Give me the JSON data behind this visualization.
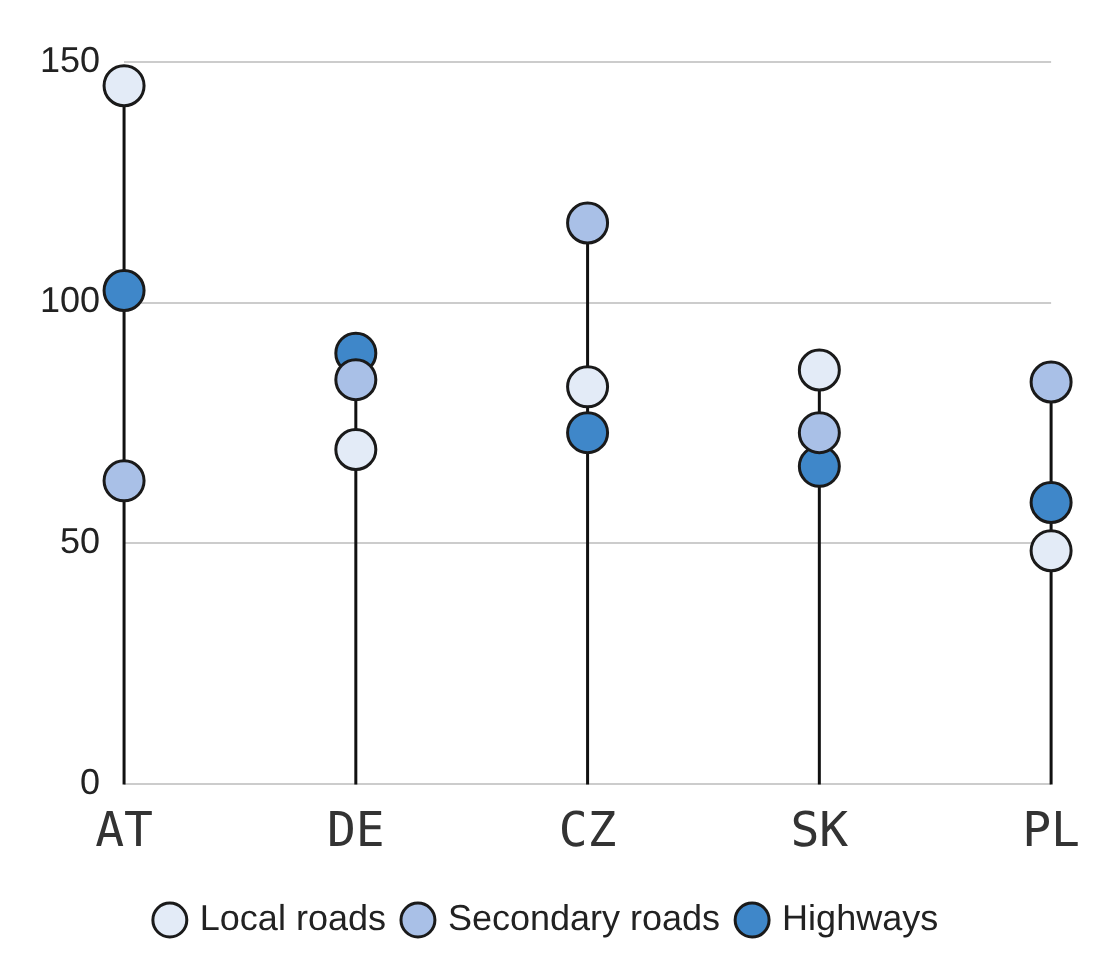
{
  "chart_data": {
    "type": "lollipop",
    "categories": [
      "AT",
      "DE",
      "CZ",
      "SK",
      "PL"
    ],
    "series": [
      {
        "name": "Local roads",
        "color": "#e3ebf7",
        "values": [
          145,
          69.5,
          82.5,
          86,
          48.5
        ]
      },
      {
        "name": "Secondary roads",
        "color": "#a9c0e7",
        "values": [
          63,
          84,
          116.5,
          73,
          83.5
        ]
      },
      {
        "name": "Highways",
        "color": "#3f87c9",
        "values": [
          102.5,
          89.5,
          73,
          66,
          58.5
        ]
      }
    ],
    "ylim": [
      0,
      150
    ],
    "yticks": [
      0,
      50,
      100,
      150
    ],
    "grid": "y",
    "legend": "bottom",
    "marker": "circle"
  }
}
